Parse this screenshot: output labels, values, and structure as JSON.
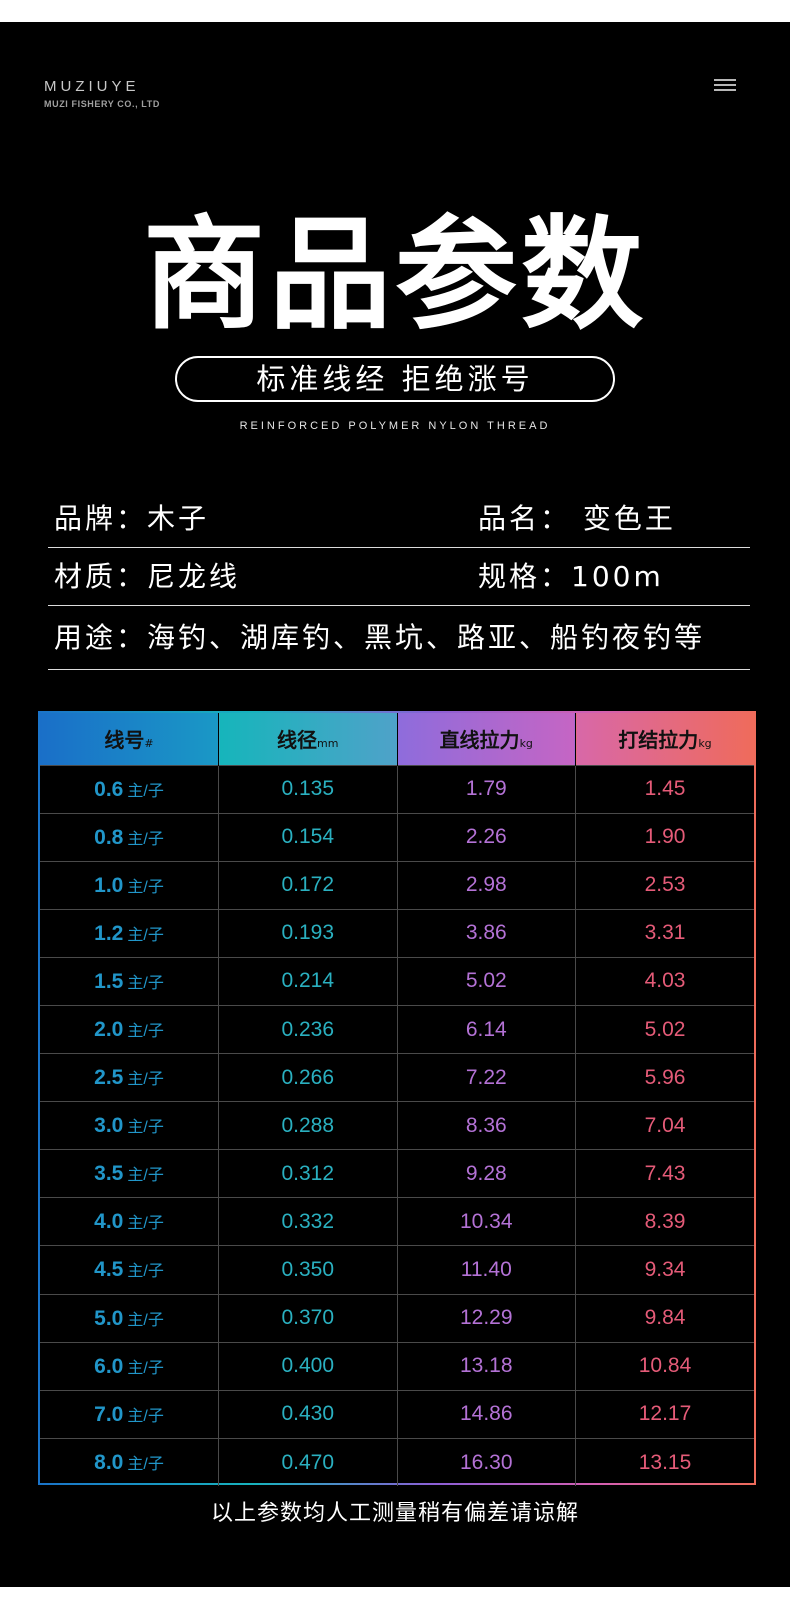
{
  "header": {
    "brand_name": "MUZIUYE",
    "brand_sub": "MUZI FISHERY CO., LTD"
  },
  "hero": {
    "title": "商品参数",
    "pill_text": "标准线经 拒绝涨号",
    "subtitle": "REINFORCED POLYMER NYLON THREAD"
  },
  "specs": {
    "brand_label": "品牌：木子",
    "name_label": "品名：  变色王",
    "material_label": "材质：尼龙线",
    "size_label": "规格：100m",
    "usage_label": "用途：海钓、湖库钓、黑坑、路亚、船钓夜钓等"
  },
  "table": {
    "headers": [
      {
        "text": "线号",
        "unit": "#"
      },
      {
        "text": "线径",
        "unit": "mm"
      },
      {
        "text": "直线拉力",
        "unit": "kg"
      },
      {
        "text": "打结拉力",
        "unit": "kg"
      }
    ],
    "unit_suffix": "主/子",
    "rows": [
      {
        "no": "0.6",
        "dia": "0.135",
        "straight": "1.79",
        "knot": "1.45"
      },
      {
        "no": "0.8",
        "dia": "0.154",
        "straight": "2.26",
        "knot": "1.90"
      },
      {
        "no": "1.0",
        "dia": "0.172",
        "straight": "2.98",
        "knot": "2.53"
      },
      {
        "no": "1.2",
        "dia": "0.193",
        "straight": "3.86",
        "knot": "3.31"
      },
      {
        "no": "1.5",
        "dia": "0.214",
        "straight": "5.02",
        "knot": "4.03"
      },
      {
        "no": "2.0",
        "dia": "0.236",
        "straight": "6.14",
        "knot": "5.02"
      },
      {
        "no": "2.5",
        "dia": "0.266",
        "straight": "7.22",
        "knot": "5.96"
      },
      {
        "no": "3.0",
        "dia": "0.288",
        "straight": "8.36",
        "knot": "7.04"
      },
      {
        "no": "3.5",
        "dia": "0.312",
        "straight": "9.28",
        "knot": "7.43"
      },
      {
        "no": "4.0",
        "dia": "0.332",
        "straight": "10.34",
        "knot": "8.39"
      },
      {
        "no": "4.5",
        "dia": "0.350",
        "straight": "11.40",
        "knot": "9.34"
      },
      {
        "no": "5.0",
        "dia": "0.370",
        "straight": "12.29",
        "knot": "9.84"
      },
      {
        "no": "6.0",
        "dia": "0.400",
        "straight": "13.18",
        "knot": "10.84"
      },
      {
        "no": "7.0",
        "dia": "0.430",
        "straight": "14.86",
        "knot": "12.17"
      },
      {
        "no": "8.0",
        "dia": "0.470",
        "straight": "16.30",
        "knot": "13.15"
      }
    ]
  },
  "footer": {
    "note": "以上参数均人工测量稍有偏差请谅解"
  },
  "icons": {
    "menu": "hamburger-menu-icon"
  },
  "colors": {
    "background": "#000000",
    "col_number": "#2196c9",
    "col_diameter": "#2ab0c0",
    "col_straight": "#b472d6",
    "col_knot": "#e55b78"
  }
}
